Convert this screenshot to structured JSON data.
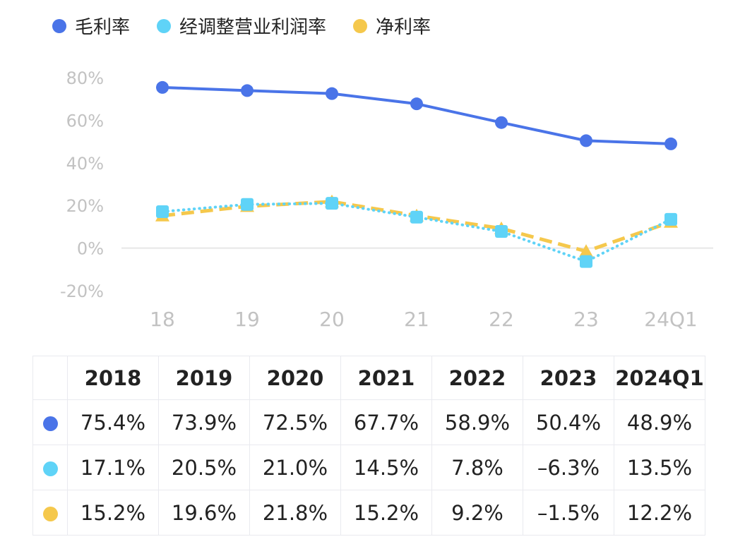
{
  "chart_data": {
    "type": "line",
    "categories": [
      "18",
      "19",
      "20",
      "21",
      "22",
      "23",
      "24Q1"
    ],
    "series": [
      {
        "name": "毛利率",
        "values": [
          75.4,
          73.9,
          72.5,
          67.7,
          58.9,
          50.4,
          48.9
        ],
        "color": "#4a74e8",
        "marker": "circle",
        "line": "solid"
      },
      {
        "name": "经调整营业利润率",
        "values": [
          17.1,
          20.5,
          21.0,
          14.5,
          7.8,
          -6.3,
          13.5
        ],
        "color": "#5fd3f7",
        "marker": "square",
        "line": "dotted"
      },
      {
        "name": "净利率",
        "values": [
          15.2,
          19.6,
          21.8,
          15.2,
          9.2,
          -1.5,
          12.2
        ],
        "color": "#f5c84c",
        "marker": "triangle",
        "line": "dashed"
      }
    ],
    "y_ticks": [
      "80%",
      "60%",
      "40%",
      "20%",
      "0%",
      "-20%"
    ],
    "ylim": [
      -20,
      80
    ],
    "legend": "top-left"
  },
  "table": {
    "header": [
      "2018",
      "2019",
      "2020",
      "2021",
      "2022",
      "2023",
      "2024Q1"
    ],
    "rows": [
      {
        "series": "毛利率",
        "color": "#4a74e8",
        "cells": [
          "75.4%",
          "73.9%",
          "72.5%",
          "67.7%",
          "58.9%",
          "50.4%",
          "48.9%"
        ]
      },
      {
        "series": "经调整营业利润率",
        "color": "#5fd3f7",
        "cells": [
          "17.1%",
          "20.5%",
          "21.0%",
          "14.5%",
          "7.8%",
          "–6.3%",
          "13.5%"
        ]
      },
      {
        "series": "净利率",
        "color": "#f5c84c",
        "cells": [
          "15.2%",
          "19.6%",
          "21.8%",
          "15.2%",
          "9.2%",
          "–1.5%",
          "12.2%"
        ]
      }
    ]
  }
}
